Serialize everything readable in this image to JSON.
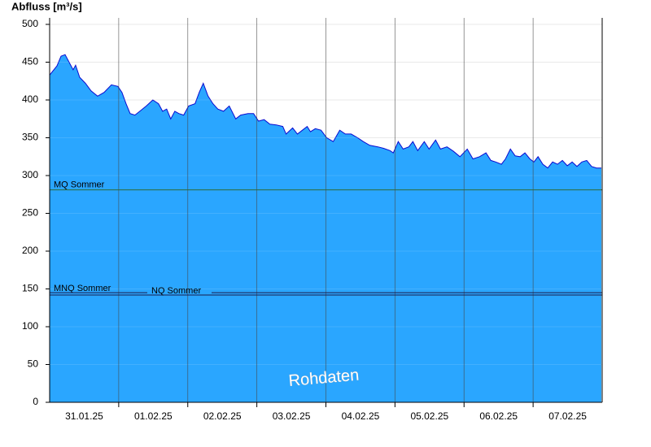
{
  "chart_data": {
    "type": "area",
    "title": "Abfluss [m³/s]",
    "annotation": "Rohdaten",
    "color": "#2aa6ff",
    "line_color": "#0a0ad0",
    "grid": true,
    "xlim": [
      0,
      8
    ],
    "ylim": [
      0,
      500
    ],
    "yticks": [
      0,
      50,
      100,
      150,
      200,
      250,
      300,
      350,
      400,
      450,
      500
    ],
    "xticks": [
      {
        "value": 0.5,
        "label": "31.01.25"
      },
      {
        "value": 1.5,
        "label": "01.02.25"
      },
      {
        "value": 2.5,
        "label": "02.02.25"
      },
      {
        "value": 3.5,
        "label": "03.02.25"
      },
      {
        "value": 4.5,
        "label": "04.02.25"
      },
      {
        "value": 5.5,
        "label": "05.02.25"
      },
      {
        "value": 6.5,
        "label": "06.02.25"
      },
      {
        "value": 7.5,
        "label": "07.02.25"
      }
    ],
    "xgrid": [
      1,
      2,
      3,
      4,
      5,
      6,
      7
    ],
    "reference_lines": [
      {
        "name": "MQ Sommer",
        "value": 281,
        "color": "#2e6b3a"
      },
      {
        "name": "MNQ Sommer",
        "value": 142,
        "color": "#1a1a4a"
      },
      {
        "name": "NQ Sommer",
        "value": 145,
        "color": "#1a1a4a"
      }
    ],
    "x": [
      0,
      0.106,
      0.165,
      0.224,
      0.282,
      0.341,
      0.376,
      0.435,
      0.518,
      0.6,
      0.694,
      0.788,
      0.894,
      0.988,
      1.047,
      1.106,
      1.165,
      1.235,
      1.306,
      1.4,
      1.494,
      1.576,
      1.635,
      1.694,
      1.753,
      1.812,
      1.871,
      1.941,
      2.012,
      2.106,
      2.165,
      2.224,
      2.294,
      2.365,
      2.435,
      2.518,
      2.6,
      2.694,
      2.765,
      2.871,
      2.953,
      3.024,
      3.106,
      3.188,
      3.282,
      3.376,
      3.424,
      3.518,
      3.588,
      3.659,
      3.729,
      3.776,
      3.847,
      3.929,
      4.012,
      4.106,
      4.2,
      4.282,
      4.365,
      4.459,
      4.541,
      4.635,
      4.753,
      4.835,
      4.929,
      4.976,
      5.047,
      5.118,
      5.2,
      5.259,
      5.329,
      5.424,
      5.494,
      5.588,
      5.659,
      5.753,
      5.847,
      5.941,
      6.047,
      6.129,
      6.224,
      6.318,
      6.388,
      6.459,
      6.541,
      6.6,
      6.671,
      6.741,
      6.812,
      6.882,
      6.953,
      7.012,
      7.071,
      7.141,
      7.212,
      7.282,
      7.353,
      7.424,
      7.494,
      7.565,
      7.635,
      7.706,
      7.776,
      7.847,
      7.918,
      7.988
    ],
    "values": [
      433,
      445,
      458,
      460,
      450,
      440,
      446,
      430,
      422,
      412,
      405,
      410,
      420,
      418,
      410,
      395,
      382,
      380,
      385,
      392,
      400,
      395,
      385,
      388,
      375,
      385,
      382,
      380,
      392,
      395,
      410,
      422,
      405,
      395,
      388,
      385,
      392,
      375,
      380,
      382,
      382,
      372,
      374,
      368,
      367,
      365,
      355,
      363,
      355,
      360,
      365,
      358,
      362,
      360,
      350,
      345,
      360,
      355,
      355,
      350,
      345,
      340,
      338,
      336,
      333,
      330,
      345,
      335,
      338,
      345,
      333,
      345,
      335,
      347,
      335,
      338,
      332,
      325,
      335,
      322,
      325,
      330,
      320,
      318,
      315,
      322,
      335,
      326,
      325,
      330,
      322,
      318,
      325,
      315,
      310,
      318,
      315,
      320,
      313,
      318,
      312,
      318,
      320,
      312,
      310,
      310
    ]
  }
}
